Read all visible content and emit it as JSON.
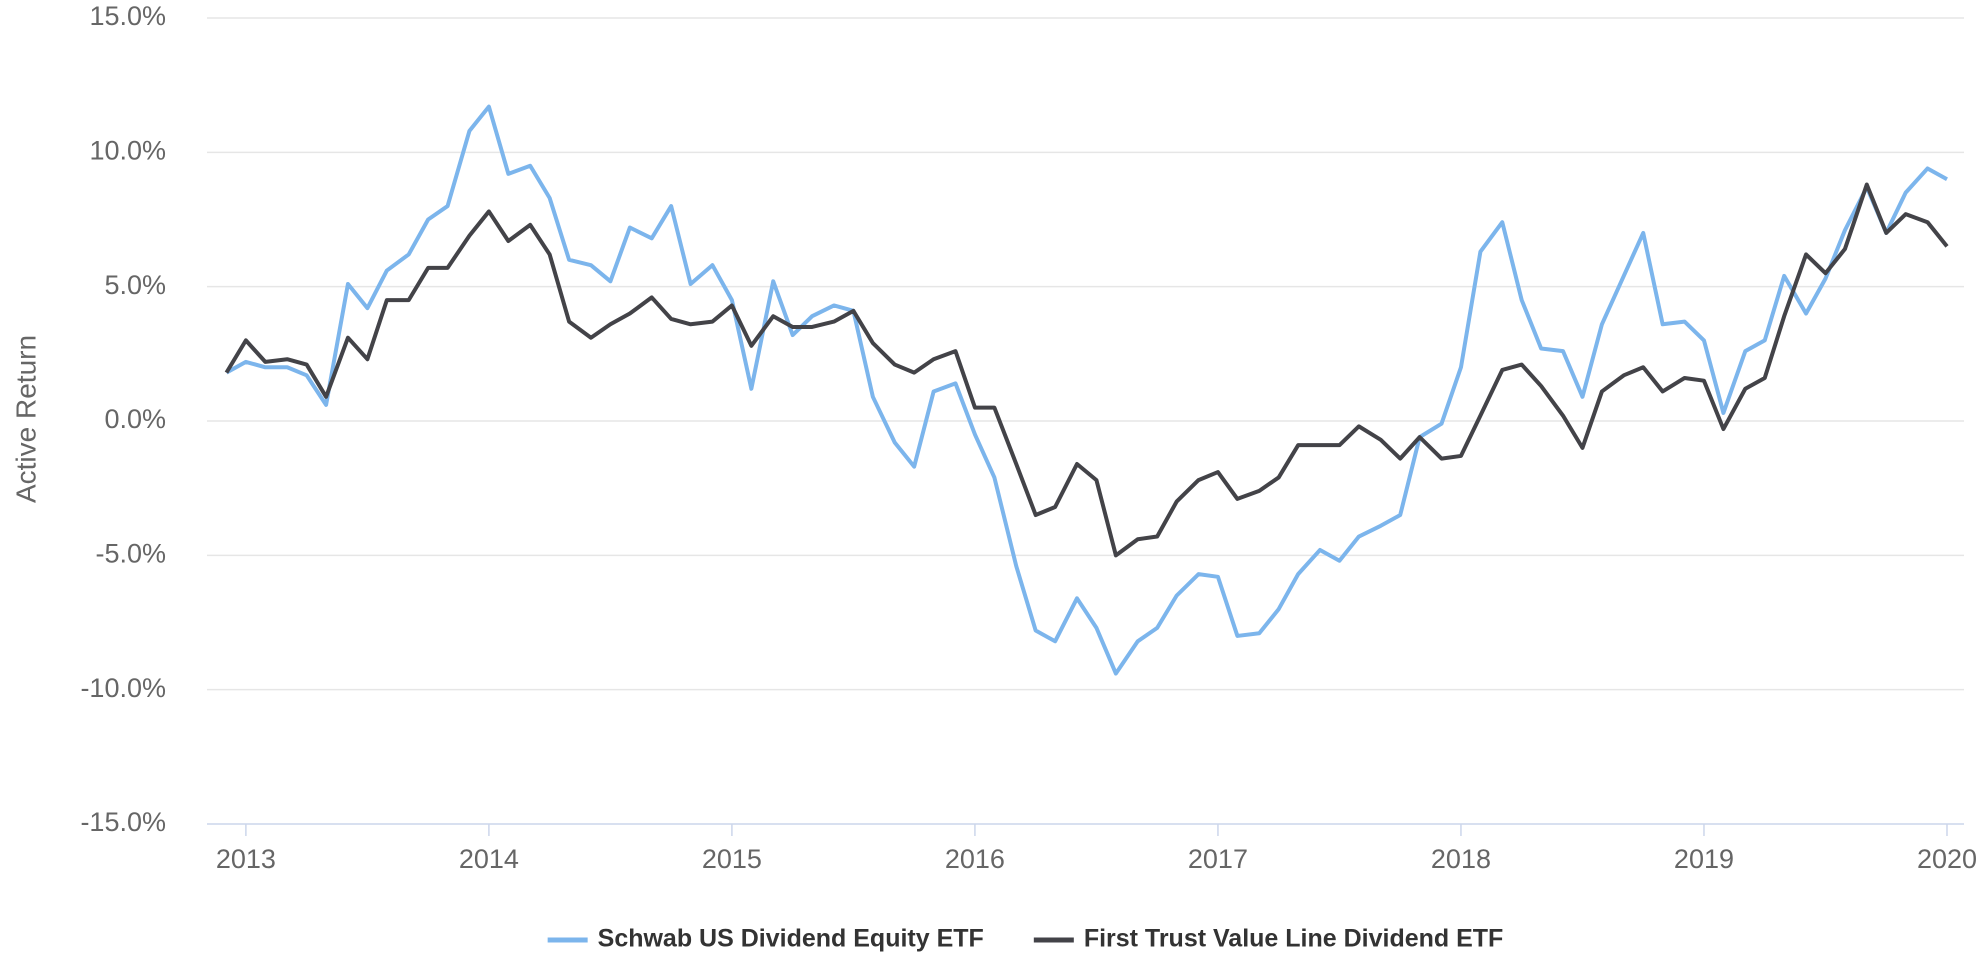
{
  "chart_data": {
    "type": "line",
    "y_label": "Active Return",
    "x": [
      2012.92,
      2013.0,
      2013.08,
      2013.17,
      2013.25,
      2013.33,
      2013.42,
      2013.5,
      2013.58,
      2013.67,
      2013.75,
      2013.83,
      2013.92,
      2014.0,
      2014.08,
      2014.17,
      2014.25,
      2014.33,
      2014.42,
      2014.5,
      2014.58,
      2014.67,
      2014.75,
      2014.83,
      2014.92,
      2015.0,
      2015.08,
      2015.17,
      2015.25,
      2015.33,
      2015.42,
      2015.5,
      2015.58,
      2015.67,
      2015.75,
      2015.83,
      2015.92,
      2016.0,
      2016.08,
      2016.17,
      2016.25,
      2016.33,
      2016.42,
      2016.5,
      2016.58,
      2016.67,
      2016.75,
      2016.83,
      2016.92,
      2017.0,
      2017.08,
      2017.17,
      2017.25,
      2017.33,
      2017.42,
      2017.5,
      2017.58,
      2017.67,
      2017.75,
      2017.83,
      2017.92,
      2018.0,
      2018.08,
      2018.17,
      2018.25,
      2018.33,
      2018.42,
      2018.5,
      2018.58,
      2018.67,
      2018.75,
      2018.83,
      2018.92,
      2019.0,
      2019.08,
      2019.17,
      2019.25,
      2019.33,
      2019.42,
      2019.5,
      2019.58,
      2019.67,
      2019.75,
      2019.83,
      2019.92,
      2020.0
    ],
    "series": [
      {
        "name": "Schwab US Dividend Equity ETF",
        "color": "#7cb5ec",
        "values": [
          1.8,
          2.2,
          2.0,
          2.0,
          1.7,
          0.6,
          5.1,
          4.2,
          5.6,
          6.2,
          7.5,
          8.0,
          10.8,
          11.7,
          9.2,
          9.5,
          8.3,
          6.0,
          5.8,
          5.2,
          7.2,
          6.8,
          8.0,
          5.1,
          5.8,
          4.5,
          1.2,
          5.2,
          3.2,
          3.9,
          4.3,
          4.1,
          0.9,
          -0.8,
          -1.7,
          1.1,
          1.4,
          -0.5,
          -2.1,
          -5.4,
          -7.8,
          -8.2,
          -6.6,
          -7.7,
          -9.4,
          -8.2,
          -7.7,
          -6.5,
          -5.7,
          -5.8,
          -8.0,
          -7.9,
          -7.0,
          -5.7,
          -4.8,
          -5.2,
          -4.3,
          -3.9,
          -3.5,
          -0.6,
          -0.1,
          2.0,
          6.3,
          7.4,
          4.5,
          2.7,
          2.6,
          0.9,
          3.6,
          5.4,
          7.0,
          3.6,
          3.7,
          3.0,
          0.3,
          2.6,
          3.0,
          5.4,
          4.0,
          5.3,
          7.1,
          8.7,
          7.0,
          8.5,
          9.4,
          9.0
        ]
      },
      {
        "name": "First Trust Value Line Dividend ETF",
        "color": "#434348",
        "values": [
          1.8,
          3.0,
          2.2,
          2.3,
          2.1,
          0.9,
          3.1,
          2.3,
          4.5,
          4.5,
          5.7,
          5.7,
          6.9,
          7.8,
          6.7,
          7.3,
          6.2,
          3.7,
          3.1,
          3.6,
          4.0,
          4.6,
          3.8,
          3.6,
          3.7,
          4.3,
          2.8,
          3.9,
          3.5,
          3.5,
          3.7,
          4.1,
          2.9,
          2.1,
          1.8,
          2.3,
          2.6,
          0.5,
          0.5,
          -1.6,
          -3.5,
          -3.2,
          -1.6,
          -2.2,
          -5.0,
          -4.4,
          -4.3,
          -3.0,
          -2.2,
          -1.9,
          -2.9,
          -2.6,
          -2.1,
          -0.9,
          -0.9,
          -0.9,
          -0.2,
          -0.7,
          -1.4,
          -0.6,
          -1.4,
          -1.3,
          0.2,
          1.9,
          2.1,
          1.3,
          0.2,
          -1.0,
          1.1,
          1.7,
          2.0,
          1.1,
          1.6,
          1.5,
          -0.3,
          1.2,
          1.6,
          3.9,
          6.2,
          5.5,
          6.4,
          8.8,
          7.0,
          7.7,
          7.4,
          6.5
        ]
      }
    ],
    "xlim": [
      2012.84,
      2020.07
    ],
    "xticks": [
      2013,
      2014,
      2015,
      2016,
      2017,
      2018,
      2019,
      2020
    ],
    "ylim": [
      -15,
      15
    ],
    "yticks": [
      {
        "value": -15,
        "label": "-15.0%"
      },
      {
        "value": -10,
        "label": "-10.0%"
      },
      {
        "value": -5,
        "label": "-5.0%"
      },
      {
        "value": 0,
        "label": "0.0%"
      },
      {
        "value": 5,
        "label": "5.0%"
      },
      {
        "value": 10,
        "label": "10.0%"
      },
      {
        "value": 15,
        "label": "15.0%"
      }
    ],
    "grid": true,
    "legend": "bottom"
  }
}
